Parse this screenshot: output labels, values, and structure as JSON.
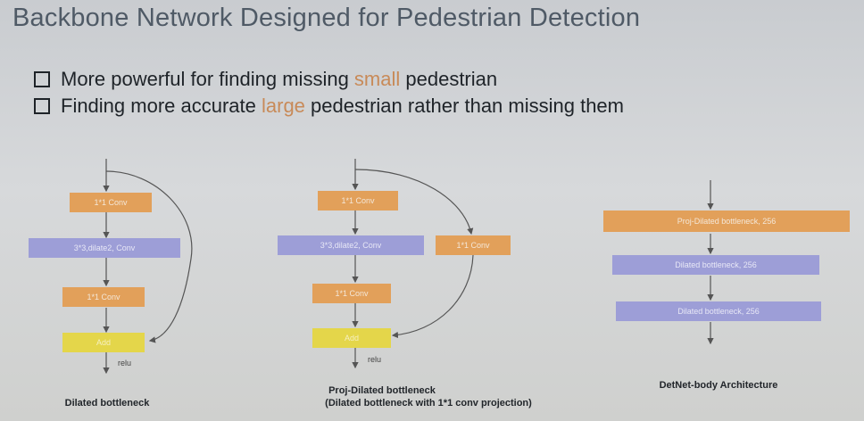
{
  "slide": {
    "title": "Backbone Network Designed for Pedestrian Detection",
    "bullets": [
      {
        "before": "More powerful for finding missing ",
        "highlight": "small",
        "after": " pedestrian"
      },
      {
        "before": "Finding more accurate ",
        "highlight": "large",
        "after": " pedestrian rather than missing them"
      }
    ],
    "accent_color": "#c88a58"
  },
  "diagrams": {
    "dilated": {
      "conv1": "1*1 Conv",
      "conv2": "3*3,dilate2, Conv",
      "conv3": "1*1 Conv",
      "add": "Add",
      "relu": "relu",
      "caption": "Dilated bottleneck"
    },
    "proj": {
      "conv1": "1*1 Conv",
      "conv2": "3*3,dilate2, Conv",
      "conv3": "1*1 Conv",
      "proj": "1*1 Conv",
      "add": "Add",
      "relu": "relu",
      "caption_line1": "Proj-Dilated bottleneck",
      "caption_line2": "(Dilated bottleneck with 1*1 conv projection)"
    },
    "detnet": {
      "block1": "Proj-Dilated bottleneck, 256",
      "block2": "Dilated bottleneck, 256",
      "block3": "Dilated bottleneck, 256",
      "caption": "DetNet-body Architecture"
    }
  }
}
